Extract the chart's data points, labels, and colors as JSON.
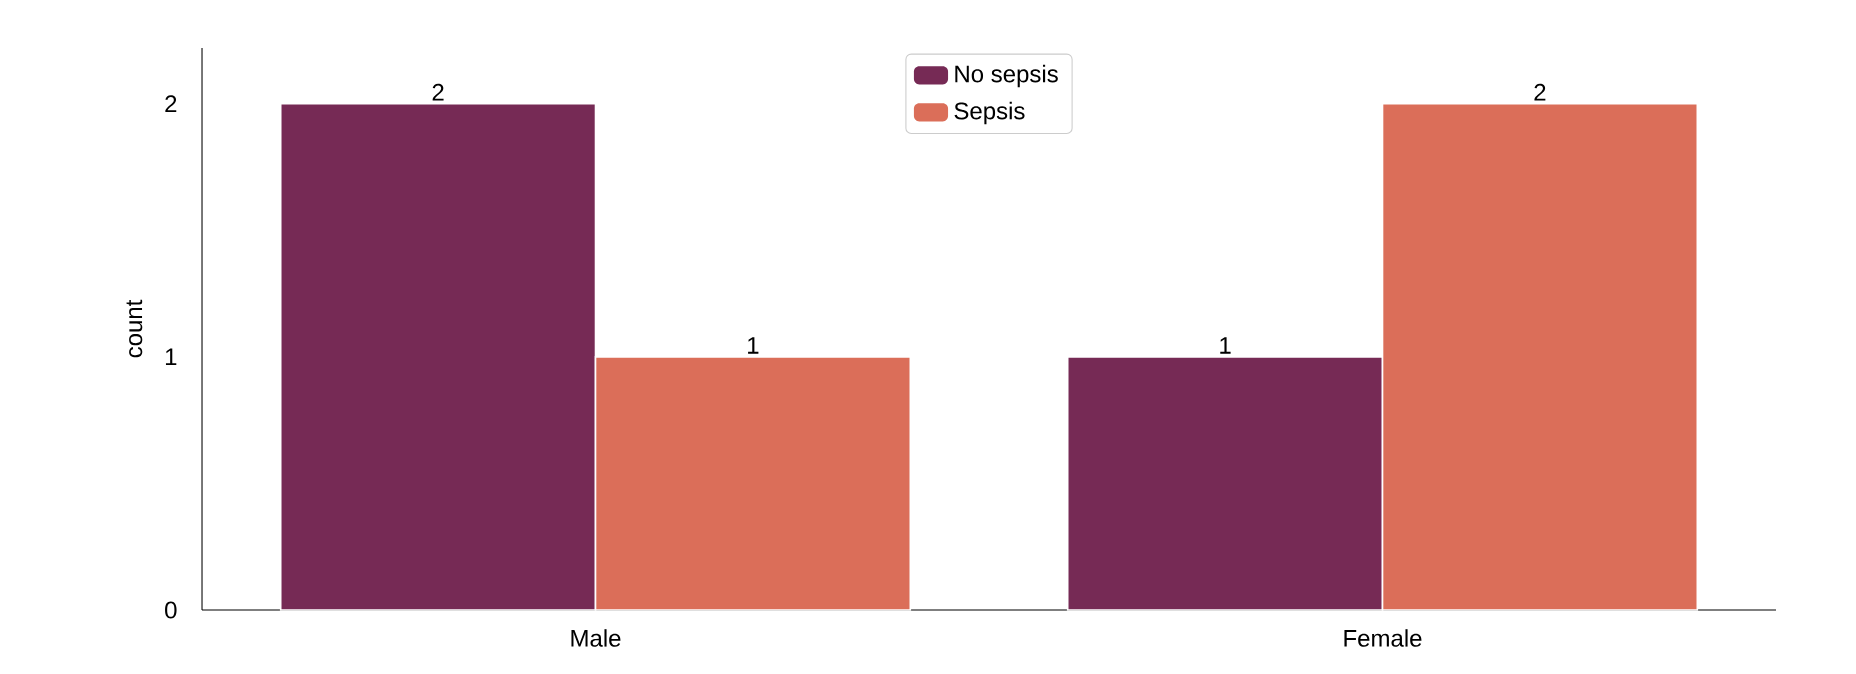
{
  "chart_data": {
    "type": "bar",
    "ylabel": "count",
    "categories": [
      "Male",
      "Female"
    ],
    "series": [
      {
        "name": "No sepsis",
        "color": "#762a55",
        "values": [
          2,
          1
        ]
      },
      {
        "name": "Sepsis",
        "color": "#db6e59",
        "values": [
          1,
          2
        ]
      }
    ],
    "ylim": [
      0,
      2.22
    ],
    "yticks": [
      0,
      1,
      2
    ],
    "data_labels": true,
    "legend": "top",
    "grid": false
  }
}
